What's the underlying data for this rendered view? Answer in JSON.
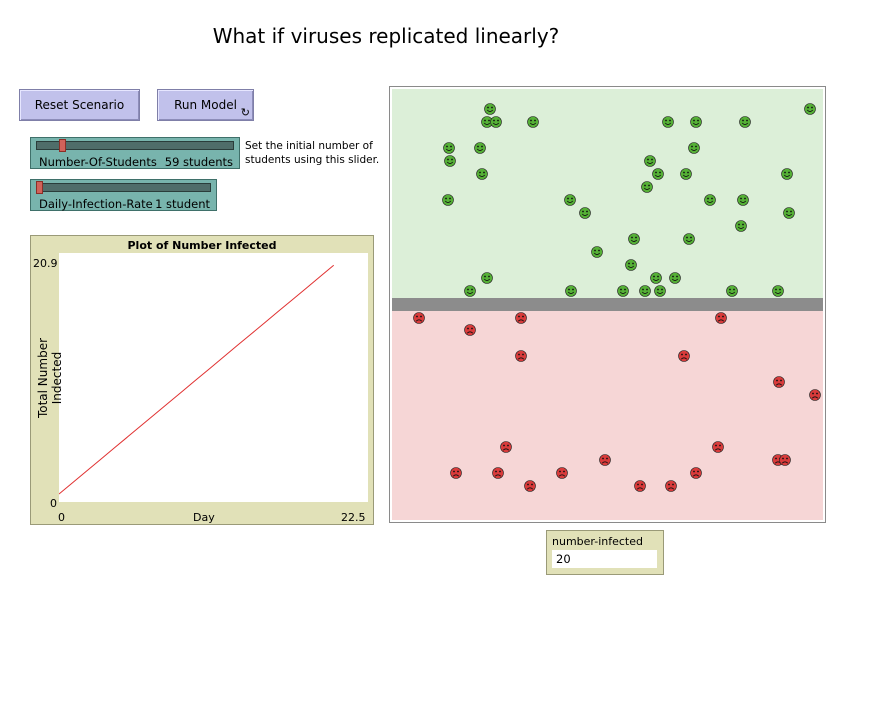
{
  "title": "What if viruses replicated linearly?",
  "buttons": {
    "reset_label": "Reset Scenario",
    "run_label": "Run Model",
    "run_forever_glyph": "↻"
  },
  "sliders": {
    "students": {
      "label": "Number-Of-Students",
      "value": "59 students",
      "min": 0,
      "max": 500,
      "current": 59
    },
    "infection": {
      "label": "Daily-Infection-Rate",
      "value": "1 student",
      "min": 1,
      "max": 50,
      "current": 1
    }
  },
  "note": {
    "line1": "Set the initial number of",
    "line2": "students using this slider."
  },
  "plot": {
    "title": "Plot of Number Infected",
    "ylabel": "Total Number Indected",
    "xlabel": "Day",
    "y_max_label": "20.9",
    "y_min_label": "0",
    "x_min_label": "0",
    "x_max_label": "22.5"
  },
  "chart_data": {
    "type": "line",
    "title": "Plot of Number Infected",
    "xlabel": "Day",
    "ylabel": "Total Number Indected",
    "xlim": [
      0,
      22.5
    ],
    "ylim": [
      0,
      20.9
    ],
    "series": [
      {
        "color": "#e03030",
        "x": [
          0,
          1,
          2,
          3,
          4,
          5,
          6,
          7,
          8,
          9,
          10,
          11,
          12,
          13,
          14,
          15,
          16,
          17,
          18,
          19,
          20
        ],
        "y": [
          0,
          1,
          2,
          3,
          4,
          5,
          6,
          7,
          8,
          9,
          10,
          11,
          12,
          13,
          14,
          15,
          16,
          17,
          18,
          19,
          20
        ]
      }
    ]
  },
  "world": {
    "healthy_bg": "#dcefd8",
    "infected_bg": "#f6d6d6",
    "divider_color": "#8c8c8c",
    "healthy_face_color": "#55b036",
    "infected_face_color": "#d93b3b",
    "healthy_icon": "smiley-icon",
    "infected_icon": "frown-icon",
    "healthy_count": 39,
    "infected_count": 20
  },
  "monitor": {
    "label": "number-infected",
    "value": "20"
  }
}
